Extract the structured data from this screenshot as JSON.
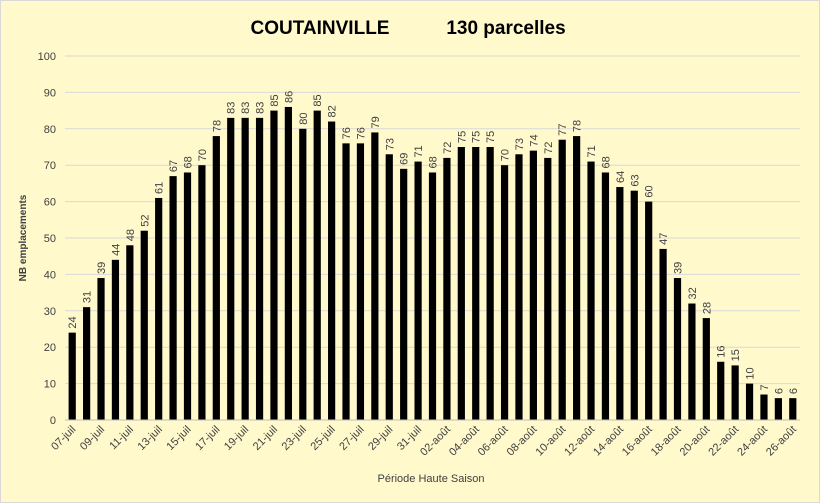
{
  "chart_data": {
    "type": "bar",
    "title": [
      "COUTAINVILLE",
      "130 parcelles"
    ],
    "y_label": "NB emplacements",
    "x_label": "Période Haute Saison",
    "categories": [
      "07-juil",
      null,
      "09-juil",
      null,
      "11-juil",
      null,
      "13-juil",
      null,
      "15-juil",
      null,
      "17-juil",
      null,
      "19-juil",
      null,
      "21-juil",
      null,
      "23-juil",
      null,
      "25-juil",
      null,
      "27-juil",
      null,
      "29-juil",
      null,
      "31-juil",
      null,
      "02-août",
      null,
      "04-août",
      null,
      "06-août",
      null,
      "08-août",
      null,
      "10-août",
      null,
      "12-août",
      null,
      "14-août",
      null,
      "16-août",
      null,
      "18-août",
      null,
      "20-août",
      null,
      "22-août",
      null,
      "24-août",
      null,
      "26-août"
    ],
    "values": [
      24,
      31,
      39,
      44,
      48,
      52,
      61,
      67,
      68,
      70,
      78,
      83,
      83,
      83,
      85,
      86,
      80,
      85,
      82,
      76,
      76,
      79,
      73,
      69,
      71,
      68,
      72,
      75,
      75,
      75,
      70,
      73,
      74,
      72,
      77,
      78,
      71,
      68,
      64,
      63,
      60,
      47,
      39,
      32,
      28,
      16,
      15,
      10,
      7,
      6,
      6
    ],
    "color": "#000000",
    "ylim": [
      0,
      100
    ],
    "yticks": [
      0,
      10,
      20,
      30,
      40,
      50,
      60,
      70,
      80,
      90,
      100
    ],
    "grid": true
  }
}
